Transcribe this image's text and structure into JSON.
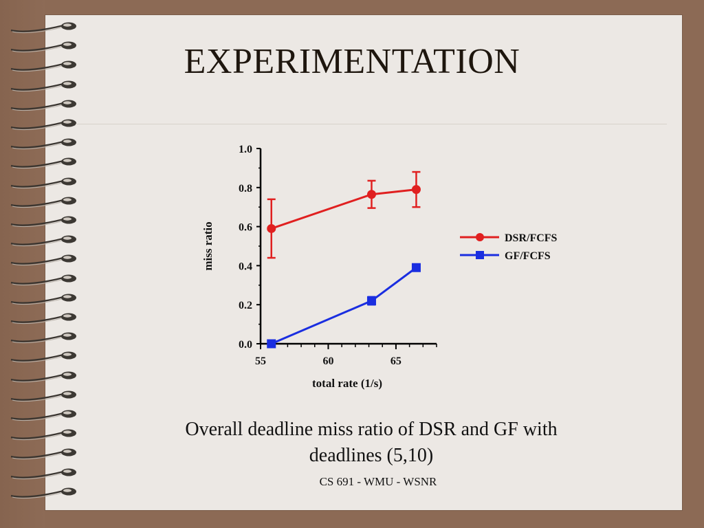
{
  "slide": {
    "title": "EXPERIMENTATION",
    "caption_line1": "Overall deadline miss ratio of DSR and GF with",
    "caption_line2": "deadlines (5,10)",
    "footer": "CS 691 - WMU - WSNR"
  },
  "colors": {
    "frame": "#8c6a55",
    "slide_bg": "#ece8e4",
    "dsr": "#e02020",
    "gf": "#1a2ee0"
  },
  "chart_data": {
    "type": "line",
    "xlabel": "total rate (1/s)",
    "ylabel": "miss ratio",
    "xlim": [
      55,
      68
    ],
    "ylim": [
      0,
      1.0
    ],
    "xticks": [
      "55",
      "60",
      "65"
    ],
    "yticks": [
      "0.0",
      "0.2",
      "0.4",
      "0.6",
      "0.8",
      "1.0"
    ],
    "legend_position": "right",
    "series": [
      {
        "name": "DSR/FCFS",
        "marker": "circle",
        "x": [
          55.8,
          63.2,
          66.5
        ],
        "y": [
          0.59,
          0.765,
          0.79
        ],
        "err": [
          0.15,
          0.07,
          0.09
        ]
      },
      {
        "name": "GF/FCFS",
        "marker": "square",
        "x": [
          55.8,
          63.2,
          66.5
        ],
        "y": [
          0.0,
          0.22,
          0.39
        ],
        "err": [
          0.0,
          0.02,
          0.0
        ]
      }
    ]
  }
}
